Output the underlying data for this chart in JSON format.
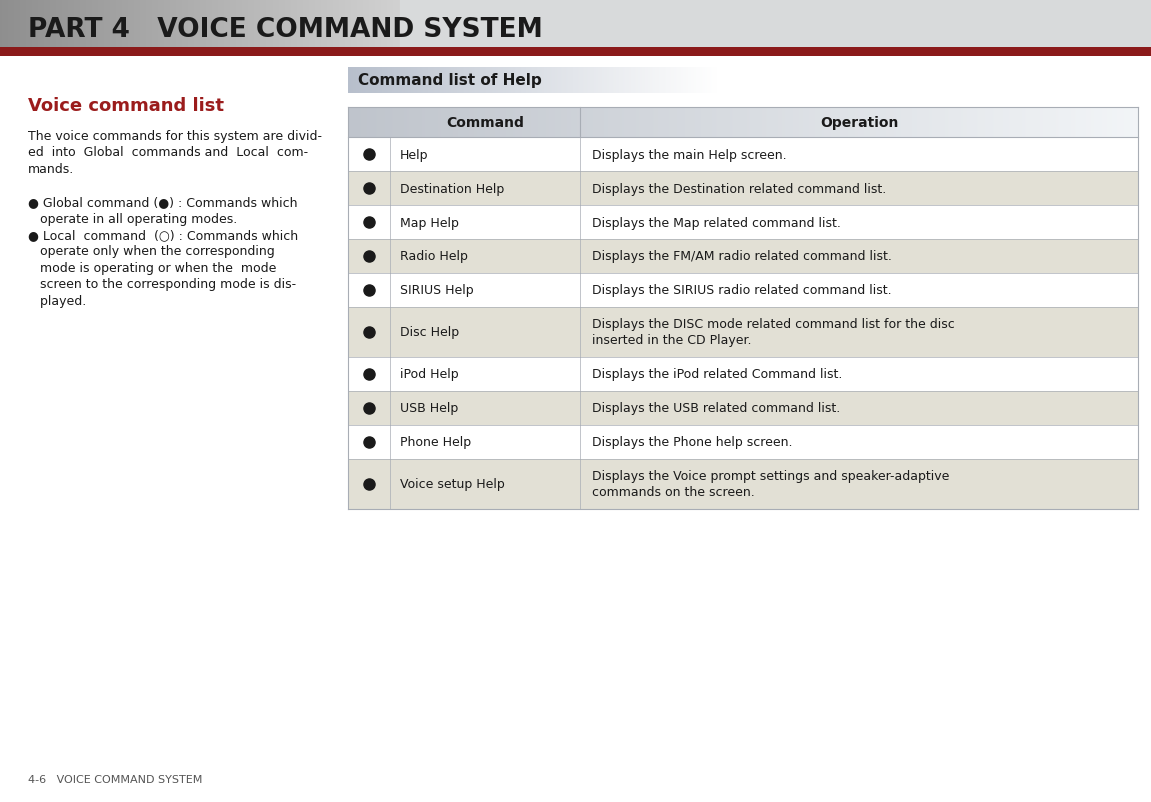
{
  "page_bg": "#ffffff",
  "header_text": "PART 4   VOICE COMMAND SYSTEM",
  "header_red_line_color": "#8b1a1a",
  "footer_text": "4-6   VOICE COMMAND SYSTEM",
  "section_title": "Voice command list",
  "section_title_color": "#9b1c1c",
  "cmd_list_title": "Command list of Help",
  "body_text_lines": [
    "The voice commands for this system are divid-",
    "ed  into  Global  commands and  Local  com-",
    "mands.",
    "",
    "● Global command (●) : Commands which",
    "   operate in all operating modes.",
    "● Local  command  (○) : Commands which",
    "   operate only when the corresponding",
    "   mode is operating or when the  mode",
    "   screen to the corresponding mode is dis-",
    "   played."
  ],
  "table_header_bg": "#c5cad1",
  "table_alt_bg": "#e2e0d5",
  "table_white_bg": "#ffffff",
  "table_border": "#a8adb5",
  "rows": [
    {
      "cmd": "Help",
      "op": "Displays the main Help screen.",
      "shaded": false
    },
    {
      "cmd": "Destination Help",
      "op": "Displays the Destination related command list.",
      "shaded": true
    },
    {
      "cmd": "Map Help",
      "op": "Displays the Map related command list.",
      "shaded": false
    },
    {
      "cmd": "Radio Help",
      "op": "Displays the FM/AM radio related command list.",
      "shaded": true
    },
    {
      "cmd": "SIRIUS Help",
      "op": "Displays the SIRIUS radio related command list.",
      "shaded": false
    },
    {
      "cmd": "Disc Help",
      "op": "Displays the DISC mode related command list for the disc\ninserted in the CD Player.",
      "shaded": true
    },
    {
      "cmd": "iPod Help",
      "op": "Displays the iPod related Command list.",
      "shaded": false
    },
    {
      "cmd": "USB Help",
      "op": "Displays the USB related command list.",
      "shaded": true
    },
    {
      "cmd": "Phone Help",
      "op": "Displays the Phone help screen.",
      "shaded": false
    },
    {
      "cmd": "Voice setup Help",
      "op": "Displays the Voice prompt settings and speaker-adaptive\ncommands on the screen.",
      "shaded": true
    }
  ]
}
